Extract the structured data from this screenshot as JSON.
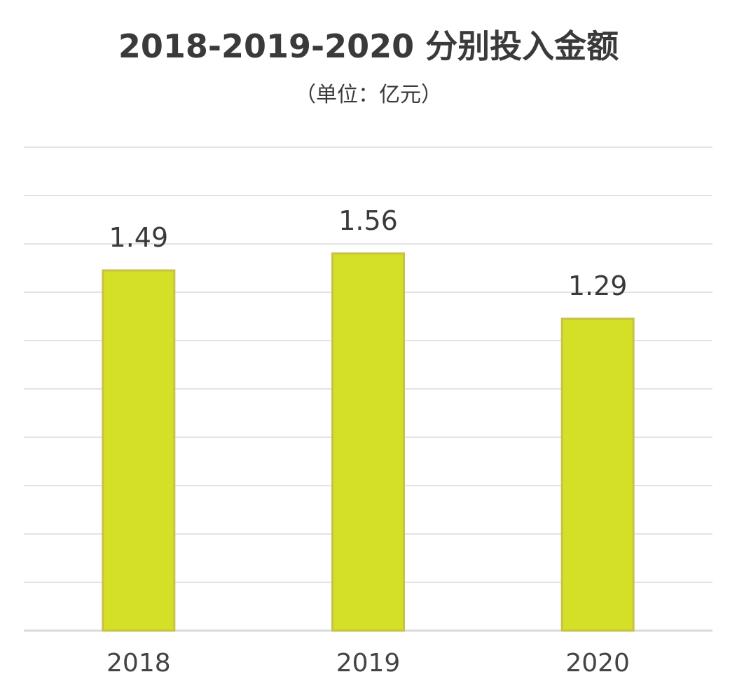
{
  "chart_data": {
    "type": "bar",
    "title": "2018-2019-2020 分别投入金额",
    "subtitle": "（单位：亿元）",
    "categories": [
      "2018",
      "2019",
      "2020"
    ],
    "values": [
      1.49,
      1.56,
      1.29
    ],
    "data_labels": [
      "1.49",
      "1.56",
      "1.29"
    ],
    "ylim": [
      0,
      2.0
    ],
    "gridlines": 10,
    "grid": true,
    "y_axis_labels_shown": false,
    "legend": "none",
    "bar_color": "#d4df28"
  }
}
